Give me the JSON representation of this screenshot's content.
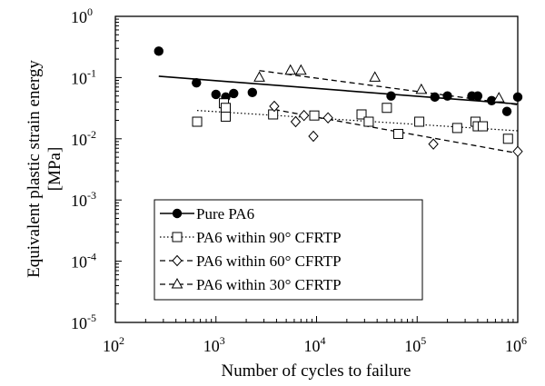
{
  "chart_data": {
    "type": "scatter",
    "x_scale": "log",
    "y_scale": "log",
    "xlim": [
      100,
      1000000
    ],
    "ylim": [
      1e-05,
      1
    ],
    "xlabel": "Number of cycles to failure",
    "ylabel": [
      "Equivalent plastic strain energy",
      "[MPa]"
    ],
    "x_ticks": [
      {
        "value": 100,
        "base": "10",
        "exp": "2"
      },
      {
        "value": 1000,
        "base": "10",
        "exp": "3"
      },
      {
        "value": 10000,
        "base": "10",
        "exp": "4"
      },
      {
        "value": 100000,
        "base": "10",
        "exp": "5"
      },
      {
        "value": 1000000,
        "base": "10",
        "exp": "6"
      }
    ],
    "y_ticks": [
      {
        "value": 1,
        "base": "10",
        "exp": "0"
      },
      {
        "value": 0.1,
        "base": "10",
        "exp": "-1"
      },
      {
        "value": 0.01,
        "base": "10",
        "exp": "-2"
      },
      {
        "value": 0.001,
        "base": "10",
        "exp": "-3"
      },
      {
        "value": 0.0001,
        "base": "10",
        "exp": "-4"
      },
      {
        "value": 1e-05,
        "base": "10",
        "exp": "-5"
      }
    ],
    "grid": false,
    "legend_position": "bottom-left",
    "series": [
      {
        "name": "Pure PA6",
        "marker": "filled-circle",
        "line": "solid",
        "points": [
          [
            270,
            0.27
          ],
          [
            640,
            0.082
          ],
          [
            1000,
            0.053
          ],
          [
            1250,
            0.048
          ],
          [
            1500,
            0.055
          ],
          [
            2300,
            0.057
          ],
          [
            55000,
            0.05
          ],
          [
            150000,
            0.048
          ],
          [
            200000,
            0.05
          ],
          [
            350000,
            0.05
          ],
          [
            400000,
            0.05
          ],
          [
            550000,
            0.042
          ],
          [
            780000,
            0.028
          ],
          [
            1000000,
            0.048
          ]
        ],
        "fit": [
          [
            270,
            0.105
          ],
          [
            1000000,
            0.037
          ]
        ]
      },
      {
        "name": "PA6 within 90° CFRTP",
        "marker": "open-square",
        "line": "dotted",
        "points": [
          [
            650,
            0.019
          ],
          [
            1200,
            0.038
          ],
          [
            1250,
            0.032
          ],
          [
            1250,
            0.023
          ],
          [
            3700,
            0.025
          ],
          [
            9500,
            0.024
          ],
          [
            28000,
            0.025
          ],
          [
            33000,
            0.019
          ],
          [
            50000,
            0.032
          ],
          [
            65000,
            0.012
          ],
          [
            105000,
            0.019
          ],
          [
            250000,
            0.015
          ],
          [
            380000,
            0.019
          ],
          [
            400000,
            0.016
          ],
          [
            450000,
            0.016
          ],
          [
            800000,
            0.01
          ]
        ],
        "fit": [
          [
            650,
            0.029
          ],
          [
            1000000,
            0.0135
          ]
        ]
      },
      {
        "name": "PA6 within 60° CFRTP",
        "marker": "open-diamond",
        "line": "dashed",
        "points": [
          [
            3800,
            0.034
          ],
          [
            6200,
            0.019
          ],
          [
            7500,
            0.024
          ],
          [
            9300,
            0.011
          ],
          [
            13000,
            0.022
          ],
          [
            145000,
            0.0082
          ],
          [
            1000000,
            0.0062
          ]
        ],
        "fit": [
          [
            3800,
            0.03
          ],
          [
            1000000,
            0.0058
          ]
        ]
      },
      {
        "name": "PA6 within 30° CFRTP",
        "marker": "open-triangle",
        "line": "dashed",
        "points": [
          [
            2700,
            0.1
          ],
          [
            5500,
            0.13
          ],
          [
            7000,
            0.13
          ],
          [
            38000,
            0.1
          ],
          [
            110000,
            0.063
          ],
          [
            650000,
            0.046
          ]
        ],
        "fit": [
          [
            2700,
            0.13
          ],
          [
            1000000,
            0.036
          ]
        ]
      }
    ]
  }
}
